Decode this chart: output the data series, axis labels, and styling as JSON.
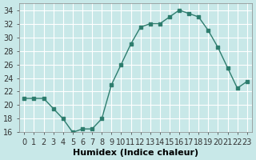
{
  "x": [
    0,
    1,
    2,
    3,
    4,
    5,
    6,
    7,
    8,
    9,
    10,
    11,
    12,
    13,
    14,
    15,
    16,
    17,
    18,
    19,
    20,
    21,
    22,
    23
  ],
  "y": [
    21,
    21,
    21,
    19.5,
    18,
    16,
    16.5,
    16.5,
    18,
    23,
    26,
    29,
    31.5,
    32,
    32,
    33,
    34,
    33.5,
    33,
    31,
    28.5,
    25.5,
    22.5,
    23.5
  ],
  "line_color": "#2e7d6e",
  "marker_color": "#2e7d6e",
  "bg_color": "#c8e8e8",
  "grid_color": "#ffffff",
  "xlabel": "Humidex (Indice chaleur)",
  "ylim": [
    16,
    35
  ],
  "xlim": [
    -0.5,
    23.5
  ],
  "yticks": [
    16,
    18,
    20,
    22,
    24,
    26,
    28,
    30,
    32,
    34
  ],
  "xticks": [
    0,
    1,
    2,
    3,
    4,
    5,
    6,
    7,
    8,
    9,
    10,
    11,
    12,
    13,
    14,
    15,
    16,
    17,
    18,
    19,
    20,
    21,
    22,
    23
  ],
  "tick_label_fontsize": 7,
  "xlabel_fontsize": 8
}
